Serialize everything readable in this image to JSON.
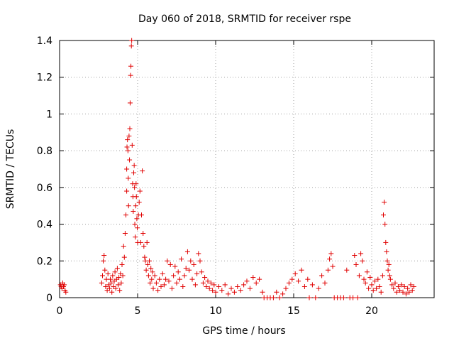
{
  "chart_data": {
    "type": "scatter",
    "title": "Day 060 of 2018, SRMTID for receiver rspe",
    "xlabel": "GPS time / hours",
    "ylabel": "SRMTID / TECUs",
    "xlim": [
      0,
      24
    ],
    "ylim": [
      0,
      1.4
    ],
    "xticks": [
      0,
      5,
      10,
      15,
      20
    ],
    "yticks": [
      0,
      0.2,
      0.4,
      0.6,
      0.8,
      1,
      1.2,
      1.4
    ],
    "xtick_labels": [
      "0",
      "5",
      "10",
      "15",
      "20"
    ],
    "ytick_labels": [
      "0",
      "0.2",
      "0.4",
      "0.6",
      "0.8",
      "1",
      "1.2",
      "1.4"
    ],
    "grid": true,
    "marker": "+",
    "color": "#e00000",
    "series": [
      {
        "name": "SRMTID",
        "points": [
          [
            0.05,
            0.07
          ],
          [
            0.1,
            0.06
          ],
          [
            0.15,
            0.05
          ],
          [
            0.2,
            0.08
          ],
          [
            0.25,
            0.06
          ],
          [
            0.3,
            0.07
          ],
          [
            0.35,
            0.04
          ],
          [
            0.4,
            0.03
          ],
          [
            2.7,
            0.08
          ],
          [
            2.75,
            0.12
          ],
          [
            2.8,
            0.2
          ],
          [
            2.85,
            0.23
          ],
          [
            2.9,
            0.15
          ],
          [
            2.95,
            0.06
          ],
          [
            3.0,
            0.1
          ],
          [
            3.05,
            0.04
          ],
          [
            3.1,
            0.13
          ],
          [
            3.15,
            0.07
          ],
          [
            3.2,
            0.05
          ],
          [
            3.25,
            0.1
          ],
          [
            3.3,
            0.08
          ],
          [
            3.35,
            0.03
          ],
          [
            3.4,
            0.12
          ],
          [
            3.45,
            0.06
          ],
          [
            3.5,
            0.09
          ],
          [
            3.55,
            0.14
          ],
          [
            3.6,
            0.05
          ],
          [
            3.65,
            0.1
          ],
          [
            3.7,
            0.16
          ],
          [
            3.75,
            0.07
          ],
          [
            3.8,
            0.11
          ],
          [
            3.85,
            0.04
          ],
          [
            3.9,
            0.13
          ],
          [
            3.95,
            0.08
          ],
          [
            4.0,
            0.18
          ],
          [
            4.05,
            0.12
          ],
          [
            4.1,
            0.28
          ],
          [
            4.15,
            0.22
          ],
          [
            4.2,
            0.35
          ],
          [
            4.25,
            0.45
          ],
          [
            4.3,
            0.58
          ],
          [
            4.3,
            0.7
          ],
          [
            4.32,
            0.82
          ],
          [
            4.35,
            0.86
          ],
          [
            4.38,
            0.8
          ],
          [
            4.4,
            0.65
          ],
          [
            4.42,
            0.5
          ],
          [
            4.45,
            0.88
          ],
          [
            4.48,
            0.75
          ],
          [
            4.5,
            0.92
          ],
          [
            4.52,
            1.06
          ],
          [
            4.55,
            1.21
          ],
          [
            4.57,
            1.26
          ],
          [
            4.6,
            1.37
          ],
          [
            4.62,
            1.4
          ],
          [
            4.65,
            0.83
          ],
          [
            4.68,
            0.62
          ],
          [
            4.7,
            0.55
          ],
          [
            4.72,
            0.47
          ],
          [
            4.75,
            0.68
          ],
          [
            4.78,
            0.72
          ],
          [
            4.8,
            0.6
          ],
          [
            4.82,
            0.4
          ],
          [
            4.85,
            0.33
          ],
          [
            4.88,
            0.5
          ],
          [
            4.9,
            0.62
          ],
          [
            4.92,
            0.55
          ],
          [
            4.95,
            0.43
          ],
          [
            4.98,
            0.38
          ],
          [
            5.0,
            0.3
          ],
          [
            5.05,
            0.45
          ],
          [
            5.1,
            0.52
          ],
          [
            5.15,
            0.58
          ],
          [
            5.2,
            0.3
          ],
          [
            5.25,
            0.45
          ],
          [
            5.3,
            0.69
          ],
          [
            5.35,
            0.35
          ],
          [
            5.4,
            0.28
          ],
          [
            5.45,
            0.22
          ],
          [
            5.5,
            0.2
          ],
          [
            5.55,
            0.15
          ],
          [
            5.6,
            0.3
          ],
          [
            5.65,
            0.18
          ],
          [
            5.7,
            0.12
          ],
          [
            5.75,
            0.2
          ],
          [
            5.8,
            0.08
          ],
          [
            5.85,
            0.16
          ],
          [
            5.9,
            0.1
          ],
          [
            5.95,
            0.14
          ],
          [
            6.0,
            0.05
          ],
          [
            6.1,
            0.12
          ],
          [
            6.2,
            0.08
          ],
          [
            6.3,
            0.04
          ],
          [
            6.4,
            0.1
          ],
          [
            6.5,
            0.06
          ],
          [
            6.6,
            0.13
          ],
          [
            6.7,
            0.07
          ],
          [
            6.8,
            0.1
          ],
          [
            6.9,
            0.2
          ],
          [
            7.0,
            0.09
          ],
          [
            7.1,
            0.18
          ],
          [
            7.2,
            0.05
          ],
          [
            7.3,
            0.12
          ],
          [
            7.4,
            0.17
          ],
          [
            7.5,
            0.08
          ],
          [
            7.6,
            0.14
          ],
          [
            7.7,
            0.1
          ],
          [
            7.8,
            0.21
          ],
          [
            7.9,
            0.06
          ],
          [
            8.0,
            0.12
          ],
          [
            8.1,
            0.16
          ],
          [
            8.2,
            0.25
          ],
          [
            8.3,
            0.15
          ],
          [
            8.4,
            0.2
          ],
          [
            8.5,
            0.1
          ],
          [
            8.6,
            0.18
          ],
          [
            8.7,
            0.07
          ],
          [
            8.8,
            0.13
          ],
          [
            8.9,
            0.24
          ],
          [
            9.0,
            0.2
          ],
          [
            9.1,
            0.14
          ],
          [
            9.2,
            0.08
          ],
          [
            9.3,
            0.11
          ],
          [
            9.4,
            0.06
          ],
          [
            9.5,
            0.09
          ],
          [
            9.6,
            0.05
          ],
          [
            9.7,
            0.08
          ],
          [
            9.8,
            0.04
          ],
          [
            9.9,
            0.07
          ],
          [
            10.0,
            0.03
          ],
          [
            10.2,
            0.06
          ],
          [
            10.4,
            0.04
          ],
          [
            10.6,
            0.07
          ],
          [
            10.8,
            0.02
          ],
          [
            11.0,
            0.05
          ],
          [
            11.2,
            0.03
          ],
          [
            11.4,
            0.06
          ],
          [
            11.6,
            0.04
          ],
          [
            11.8,
            0.07
          ],
          [
            12.0,
            0.09
          ],
          [
            12.2,
            0.05
          ],
          [
            12.4,
            0.11
          ],
          [
            12.6,
            0.08
          ],
          [
            12.8,
            0.1
          ],
          [
            13.0,
            0.03
          ],
          [
            13.1,
            0.0
          ],
          [
            13.3,
            0.0
          ],
          [
            13.5,
            0.0
          ],
          [
            13.7,
            0.0
          ],
          [
            13.9,
            0.03
          ],
          [
            14.1,
            0.0
          ],
          [
            14.3,
            0.02
          ],
          [
            14.5,
            0.05
          ],
          [
            14.7,
            0.08
          ],
          [
            14.9,
            0.1
          ],
          [
            15.1,
            0.13
          ],
          [
            15.3,
            0.09
          ],
          [
            15.5,
            0.15
          ],
          [
            15.7,
            0.06
          ],
          [
            15.9,
            0.1
          ],
          [
            16.0,
            0.0
          ],
          [
            16.2,
            0.07
          ],
          [
            16.4,
            0.0
          ],
          [
            16.6,
            0.05
          ],
          [
            16.8,
            0.12
          ],
          [
            17.0,
            0.08
          ],
          [
            17.2,
            0.15
          ],
          [
            17.3,
            0.21
          ],
          [
            17.4,
            0.24
          ],
          [
            17.5,
            0.17
          ],
          [
            17.6,
            0.0
          ],
          [
            17.8,
            0.0
          ],
          [
            18.0,
            0.0
          ],
          [
            18.2,
            0.0
          ],
          [
            18.4,
            0.15
          ],
          [
            18.6,
            0.0
          ],
          [
            18.8,
            0.0
          ],
          [
            18.9,
            0.23
          ],
          [
            19.0,
            0.18
          ],
          [
            19.1,
            0.0
          ],
          [
            19.2,
            0.12
          ],
          [
            19.3,
            0.24
          ],
          [
            19.4,
            0.2
          ],
          [
            19.5,
            0.1
          ],
          [
            19.6,
            0.08
          ],
          [
            19.7,
            0.14
          ],
          [
            19.8,
            0.05
          ],
          [
            19.9,
            0.11
          ],
          [
            20.0,
            0.07
          ],
          [
            20.1,
            0.04
          ],
          [
            20.2,
            0.09
          ],
          [
            20.3,
            0.05
          ],
          [
            20.4,
            0.1
          ],
          [
            20.5,
            0.06
          ],
          [
            20.6,
            0.03
          ],
          [
            20.7,
            0.12
          ],
          [
            20.75,
            0.45
          ],
          [
            20.8,
            0.52
          ],
          [
            20.85,
            0.4
          ],
          [
            20.9,
            0.3
          ],
          [
            20.95,
            0.25
          ],
          [
            21.0,
            0.2
          ],
          [
            21.05,
            0.15
          ],
          [
            21.1,
            0.18
          ],
          [
            21.15,
            0.12
          ],
          [
            21.2,
            0.1
          ],
          [
            21.3,
            0.07
          ],
          [
            21.4,
            0.05
          ],
          [
            21.5,
            0.08
          ],
          [
            21.6,
            0.03
          ],
          [
            21.7,
            0.06
          ],
          [
            21.8,
            0.04
          ],
          [
            21.9,
            0.07
          ],
          [
            22.0,
            0.03
          ],
          [
            22.1,
            0.06
          ],
          [
            22.2,
            0.02
          ],
          [
            22.3,
            0.05
          ],
          [
            22.4,
            0.03
          ],
          [
            22.5,
            0.07
          ],
          [
            22.6,
            0.04
          ],
          [
            22.7,
            0.06
          ]
        ]
      }
    ]
  }
}
